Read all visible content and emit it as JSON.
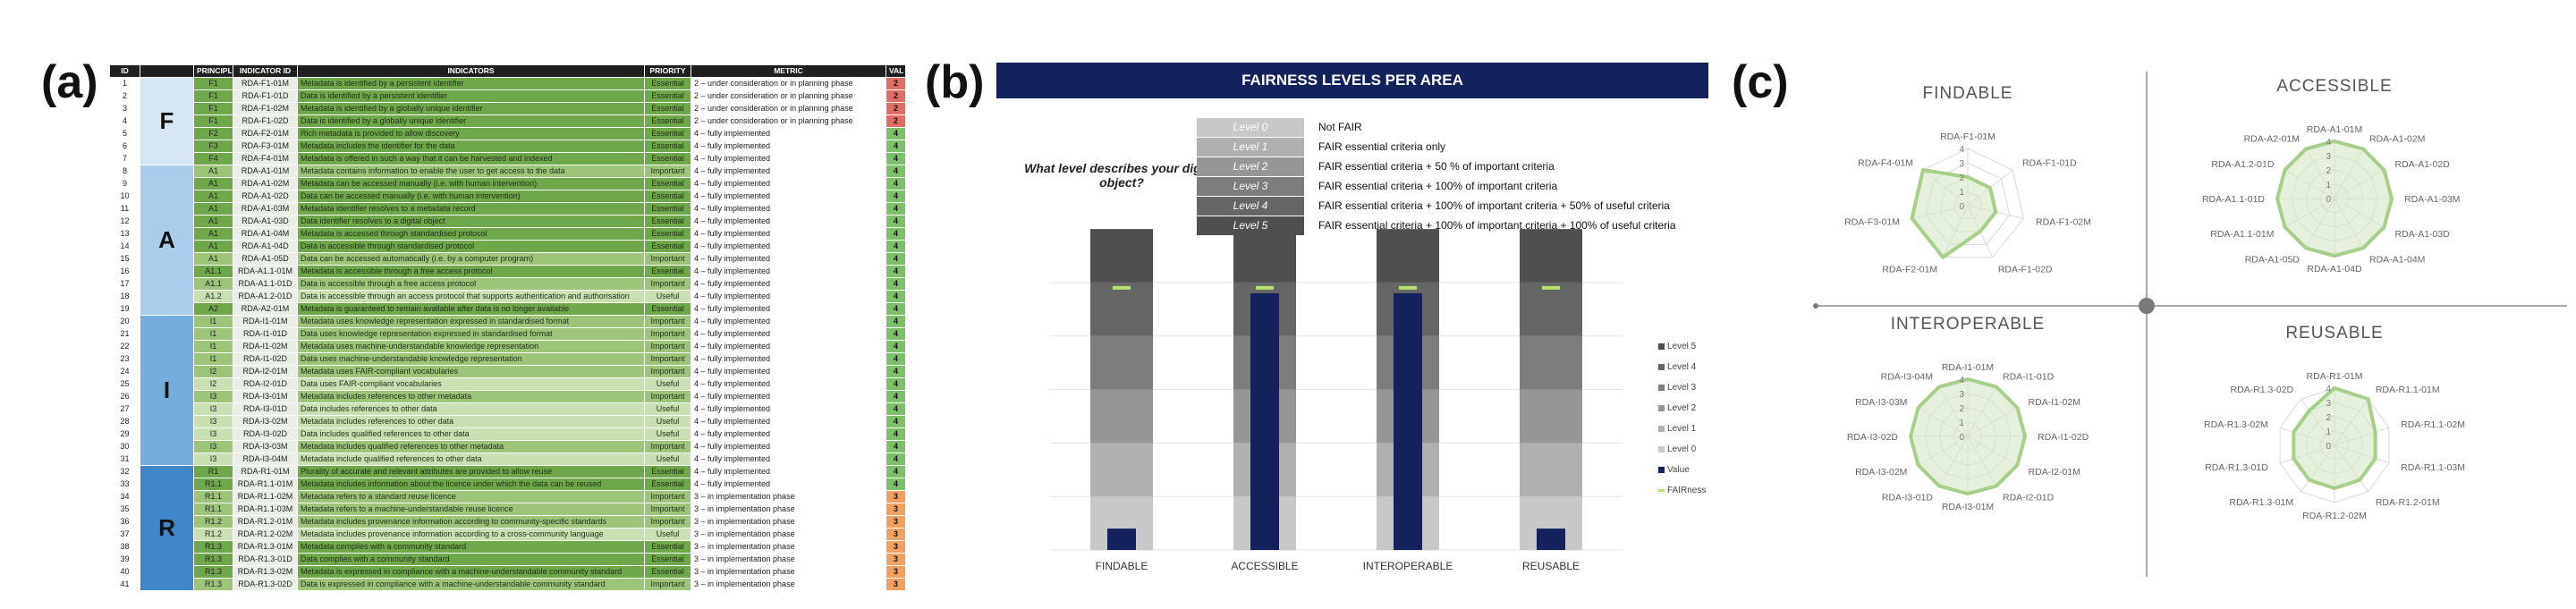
{
  "panel_labels": {
    "a": "(a)",
    "b": "(b)",
    "c": "(c)"
  },
  "sheet": {
    "headers": [
      "ID",
      "PRINCIPLE",
      "INDICATOR ID",
      "INDICATORS",
      "PRIORITY",
      "METRIC",
      "VAL"
    ],
    "groups": [
      {
        "letter": "F",
        "rows": 7
      },
      {
        "letter": "A",
        "rows": 12
      },
      {
        "letter": "I",
        "rows": 12
      },
      {
        "letter": "R",
        "rows": 10
      }
    ],
    "rows": [
      {
        "id": "1",
        "principle": "F1",
        "indicator": "RDA-F1-01M",
        "desc": "Metadata is identified by a persistent identifier",
        "priority": "Essential",
        "metric": "2 – under consideration or in planning phase",
        "value": "2"
      },
      {
        "id": "2",
        "principle": "F1",
        "indicator": "RDA-F1-01D",
        "desc": "Data is identified by a persistent identifier",
        "priority": "Essential",
        "metric": "2 – under consideration or in planning phase",
        "value": "2"
      },
      {
        "id": "3",
        "principle": "F1",
        "indicator": "RDA-F1-02M",
        "desc": "Metadata is identified by a globally unique identifier",
        "priority": "Essential",
        "metric": "2 – under consideration or in planning phase",
        "value": "2"
      },
      {
        "id": "4",
        "principle": "F1",
        "indicator": "RDA-F1-02D",
        "desc": "Data is identified by a globally unique identifier",
        "priority": "Essential",
        "metric": "2 – under consideration or in planning phase",
        "value": "2"
      },
      {
        "id": "5",
        "principle": "F2",
        "indicator": "RDA-F2-01M",
        "desc": "Rich metadata is provided to allow discovery",
        "priority": "Essential",
        "metric": "4 – fully implemented",
        "value": "4"
      },
      {
        "id": "6",
        "principle": "F3",
        "indicator": "RDA-F3-01M",
        "desc": "Metadata includes the identifier for the data",
        "priority": "Essential",
        "metric": "4 – fully implemented",
        "value": "4"
      },
      {
        "id": "7",
        "principle": "F4",
        "indicator": "RDA-F4-01M",
        "desc": "Metadata is offered in such a way that it can be harvested and indexed",
        "priority": "Essential",
        "metric": "4 – fully implemented",
        "value": "4"
      },
      {
        "id": "8",
        "principle": "A1",
        "indicator": "RDA-A1-01M",
        "desc": "Metadata contains information to enable the user to get access to the data",
        "priority": "Important",
        "metric": "4 – fully implemented",
        "value": "4"
      },
      {
        "id": "9",
        "principle": "A1",
        "indicator": "RDA-A1-02M",
        "desc": "Metadata can be accessed manually (i.e. with human intervention)",
        "priority": "Essential",
        "metric": "4 – fully implemented",
        "value": "4"
      },
      {
        "id": "10",
        "principle": "A1",
        "indicator": "RDA-A1-02D",
        "desc": "Data can be accessed manually (i.e. with human intervention)",
        "priority": "Essential",
        "metric": "4 – fully implemented",
        "value": "4"
      },
      {
        "id": "11",
        "principle": "A1",
        "indicator": "RDA-A1-03M",
        "desc": "Metadata identifier resolves to a metadata record",
        "priority": "Essential",
        "metric": "4 – fully implemented",
        "value": "4"
      },
      {
        "id": "12",
        "principle": "A1",
        "indicator": "RDA-A1-03D",
        "desc": "Data identifier resolves to a digital object",
        "priority": "Essential",
        "metric": "4 – fully implemented",
        "value": "4"
      },
      {
        "id": "13",
        "principle": "A1",
        "indicator": "RDA-A1-04M",
        "desc": "Metadata is accessed through standardised protocol",
        "priority": "Essential",
        "metric": "4 – fully implemented",
        "value": "4"
      },
      {
        "id": "14",
        "principle": "A1",
        "indicator": "RDA-A1-04D",
        "desc": "Data is accessible through standardised protocol",
        "priority": "Essential",
        "metric": "4 – fully implemented",
        "value": "4"
      },
      {
        "id": "15",
        "principle": "A1",
        "indicator": "RDA-A1-05D",
        "desc": "Data can be accessed automatically (i.e. by a computer program)",
        "priority": "Important",
        "metric": "4 – fully implemented",
        "value": "4"
      },
      {
        "id": "16",
        "principle": "A1.1",
        "indicator": "RDA-A1.1-01M",
        "desc": "Metadata is accessible through a free access protocol",
        "priority": "Essential",
        "metric": "4 – fully implemented",
        "value": "4"
      },
      {
        "id": "17",
        "principle": "A1.1",
        "indicator": "RDA-A1.1-01D",
        "desc": "Data is accessible through a free access protocol",
        "priority": "Important",
        "metric": "4 – fully implemented",
        "value": "4"
      },
      {
        "id": "18",
        "principle": "A1.2",
        "indicator": "RDA-A1.2-01D",
        "desc": "Data is accessible through an access protocol that supports authentication and authorisation",
        "priority": "Useful",
        "metric": "4 – fully implemented",
        "value": "4"
      },
      {
        "id": "19",
        "principle": "A2",
        "indicator": "RDA-A2-01M",
        "desc": "Metadata is guaranteed to remain available after data is no longer available",
        "priority": "Essential",
        "metric": "4 – fully implemented",
        "value": "4"
      },
      {
        "id": "20",
        "principle": "I1",
        "indicator": "RDA-I1-01M",
        "desc": "Metadata uses knowledge representation expressed in standardised format",
        "priority": "Important",
        "metric": "4 – fully implemented",
        "value": "4"
      },
      {
        "id": "21",
        "principle": "I1",
        "indicator": "RDA-I1-01D",
        "desc": "Data uses knowledge representation expressed in standardised format",
        "priority": "Important",
        "metric": "4 – fully implemented",
        "value": "4"
      },
      {
        "id": "22",
        "principle": "I1",
        "indicator": "RDA-I1-02M",
        "desc": "Metadata uses machine-understandable knowledge representation",
        "priority": "Important",
        "metric": "4 – fully implemented",
        "value": "4"
      },
      {
        "id": "23",
        "principle": "I1",
        "indicator": "RDA-I1-02D",
        "desc": "Data uses machine-understandable knowledge representation",
        "priority": "Important",
        "metric": "4 – fully implemented",
        "value": "4"
      },
      {
        "id": "24",
        "principle": "I2",
        "indicator": "RDA-I2-01M",
        "desc": "Metadata uses FAIR-compliant vocabularies",
        "priority": "Important",
        "metric": "4 – fully implemented",
        "value": "4"
      },
      {
        "id": "25",
        "principle": "I2",
        "indicator": "RDA-I2-01D",
        "desc": "Data uses FAIR-compliant vocabularies",
        "priority": "Useful",
        "metric": "4 – fully implemented",
        "value": "4"
      },
      {
        "id": "26",
        "principle": "I3",
        "indicator": "RDA-I3-01M",
        "desc": "Metadata includes references to other metadata",
        "priority": "Important",
        "metric": "4 – fully implemented",
        "value": "4"
      },
      {
        "id": "27",
        "principle": "I3",
        "indicator": "RDA-I3-01D",
        "desc": "Data includes references to other data",
        "priority": "Useful",
        "metric": "4 – fully implemented",
        "value": "4"
      },
      {
        "id": "28",
        "principle": "I3",
        "indicator": "RDA-I3-02M",
        "desc": "Metadata includes references to other data",
        "priority": "Useful",
        "metric": "4 – fully implemented",
        "value": "4"
      },
      {
        "id": "29",
        "principle": "I3",
        "indicator": "RDA-I3-02D",
        "desc": "Data includes qualified references to other data",
        "priority": "Useful",
        "metric": "4 – fully implemented",
        "value": "4"
      },
      {
        "id": "30",
        "principle": "I3",
        "indicator": "RDA-I3-03M",
        "desc": "Metadata includes qualified references to other metadata",
        "priority": "Important",
        "metric": "4 – fully implemented",
        "value": "4"
      },
      {
        "id": "31",
        "principle": "I3",
        "indicator": "RDA-I3-04M",
        "desc": "Metadata include qualified references to other data",
        "priority": "Useful",
        "metric": "4 – fully implemented",
        "value": "4"
      },
      {
        "id": "32",
        "principle": "R1",
        "indicator": "RDA-R1-01M",
        "desc": "Plurality of accurate and relevant attributes are provided to allow reuse",
        "priority": "Essential",
        "metric": "4 – fully implemented",
        "value": "4"
      },
      {
        "id": "33",
        "principle": "R1.1",
        "indicator": "RDA-R1.1-01M",
        "desc": "Metadata includes information about the licence under which the data can be reused",
        "priority": "Essential",
        "metric": "4 – fully implemented",
        "value": "4"
      },
      {
        "id": "34",
        "principle": "R1.1",
        "indicator": "RDA-R1.1-02M",
        "desc": "Metadata refers to a standard reuse licence",
        "priority": "Important",
        "metric": "3 – in implementation phase",
        "value": "3"
      },
      {
        "id": "35",
        "principle": "R1.1",
        "indicator": "RDA-R1.1-03M",
        "desc": "Metadata refers to a machine-understandable reuse licence",
        "priority": "Important",
        "metric": "3 – in implementation phase",
        "value": "3"
      },
      {
        "id": "36",
        "principle": "R1.2",
        "indicator": "RDA-R1.2-01M",
        "desc": "Metadata includes provenance information according to community-specific standards",
        "priority": "Important",
        "metric": "3 – in implementation phase",
        "value": "3"
      },
      {
        "id": "37",
        "principle": "R1.2",
        "indicator": "RDA-R1.2-02M",
        "desc": "Metadata includes provenance information according to a cross-community language",
        "priority": "Useful",
        "metric": "3 – in implementation phase",
        "value": "3"
      },
      {
        "id": "38",
        "principle": "R1.3",
        "indicator": "RDA-R1.3-01M",
        "desc": "Metadata complies with a community standard",
        "priority": "Essential",
        "metric": "3 – in implementation phase",
        "value": "3"
      },
      {
        "id": "39",
        "principle": "R1.3",
        "indicator": "RDA-R1.3-01D",
        "desc": "Data complies with a community standard",
        "priority": "Essential",
        "metric": "3 – in implementation phase",
        "value": "3"
      },
      {
        "id": "40",
        "principle": "R1.3",
        "indicator": "RDA-R1.3-02M",
        "desc": "Metadata is expressed in compliance with a machine-understandable community standard",
        "priority": "Essential",
        "metric": "3 – in implementation phase",
        "value": "3"
      },
      {
        "id": "41",
        "principle": "R1.3",
        "indicator": "RDA-R1.3-02D",
        "desc": "Data is expressed in compliance with a machine-understandable community standard",
        "priority": "Important",
        "metric": "3 – in implementation phase",
        "value": "3"
      }
    ]
  },
  "panel_b": {
    "banner": "FAIRNESS LEVELS PER AREA",
    "question": "What level describes your digital object?",
    "levels": [
      {
        "name": "Level 0",
        "text": "Not FAIR",
        "color": "#c8c8c8"
      },
      {
        "name": "Level 1",
        "text": "FAIR essential criteria only",
        "color": "#b0b0b0"
      },
      {
        "name": "Level 2",
        "text": "FAIR essential criteria + 50 % of important criteria",
        "color": "#969696"
      },
      {
        "name": "Level 3",
        "text": "FAIR essential criteria + 100% of important criteria",
        "color": "#7d7d7d"
      },
      {
        "name": "Level 4",
        "text": "FAIR essential criteria + 100% of important criteria + 50% of useful criteria",
        "color": "#666666"
      },
      {
        "name": "Level 5",
        "text": "FAIR essential criteria + 100% of important criteria + 100% of useful criteria",
        "color": "#4f4f4f"
      }
    ],
    "legend": [
      "Level 5",
      "Level 4",
      "Level 3",
      "Level 2",
      "Level 1",
      "Level 0",
      "Value",
      "FAIRness"
    ],
    "value_color": "#13215c",
    "fairness_color": "#b5e36e"
  },
  "chart_data": [
    {
      "type": "bar",
      "categories": [
        "FINDABLE",
        "ACCESSIBLE",
        "INTEROPERABLE",
        "REUSABLE"
      ],
      "series": [
        {
          "name": "Value",
          "values": [
            0.4,
            4.8,
            4.8,
            0.4
          ]
        },
        {
          "name": "FAIRness",
          "values": [
            4.9,
            4.9,
            4.9,
            4.9
          ]
        }
      ],
      "ylim": [
        0,
        5.3
      ],
      "legend": "right"
    },
    {
      "type": "radar",
      "title": "FINDABLE",
      "categories": [
        "RDA-F1-01M",
        "RDA-F1-01D",
        "RDA-F1-02M",
        "RDA-F1-02D",
        "RDA-F2-01M",
        "RDA-F3-01M",
        "RDA-F4-01M"
      ],
      "values": [
        2,
        2,
        2,
        2,
        4,
        4,
        4
      ],
      "ticks": [
        "0",
        "1",
        "2",
        "3",
        "4"
      ],
      "ylim": [
        0,
        4
      ]
    },
    {
      "type": "radar",
      "title": "ACCESSIBLE",
      "categories": [
        "RDA-A1-01M",
        "RDA-A1-02M",
        "RDA-A1-02D",
        "RDA-A1-03M",
        "RDA-A1-03D",
        "RDA-A1-04M",
        "RDA-A1-04D",
        "RDA-A1-05D",
        "RDA-A1.1-01M",
        "RDA-A1.1-01D",
        "RDA-A1.2-01D",
        "RDA-A2-01M"
      ],
      "values": [
        4,
        4,
        4,
        4,
        4,
        4,
        4,
        4,
        4,
        4,
        4,
        4
      ],
      "ticks": [
        "0",
        "1",
        "2",
        "3",
        "4"
      ],
      "ylim": [
        0,
        4
      ]
    },
    {
      "type": "radar",
      "title": "INTEROPERABLE",
      "categories": [
        "RDA-I1-01M",
        "RDA-I1-01D",
        "RDA-I1-02M",
        "RDA-I1-02D",
        "RDA-I2-01M",
        "RDA-I2-01D",
        "RDA-I3-01M",
        "RDA-I3-01D",
        "RDA-I3-02M",
        "RDA-I3-02D",
        "RDA-I3-03M",
        "RDA-I3-04M"
      ],
      "values": [
        4,
        4,
        4,
        4,
        4,
        4,
        4,
        4,
        4,
        4,
        4,
        4
      ],
      "ticks": [
        "0",
        "1",
        "2",
        "3",
        "4"
      ],
      "ylim": [
        0,
        4
      ]
    },
    {
      "type": "radar",
      "title": "REUSABLE",
      "categories": [
        "RDA-R1-01M",
        "RDA-R1.1-01M",
        "RDA-R1.1-02M",
        "RDA-R1.1-03M",
        "RDA-R1.2-01M",
        "RDA-R1.2-02M",
        "RDA-R1.3-01M",
        "RDA-R1.3-01D",
        "RDA-R1.3-02M",
        "RDA-R1.3-02D"
      ],
      "values": [
        4,
        4,
        3,
        3,
        3,
        3,
        3,
        3,
        3,
        3
      ],
      "ticks": [
        "0",
        "1",
        "2",
        "3",
        "4"
      ],
      "ylim": [
        0,
        4
      ]
    }
  ],
  "radar_style": {
    "fill": "#d4e8c4",
    "stroke": "#a6cf88",
    "grid": "#d9d9d9"
  }
}
